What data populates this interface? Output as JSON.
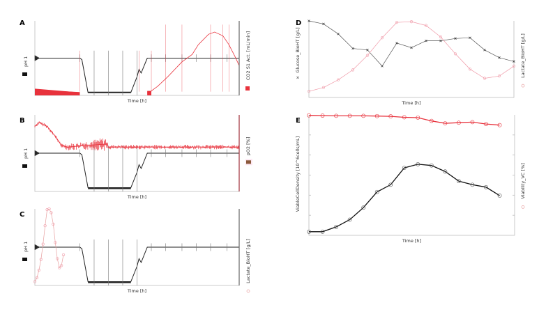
{
  "chart_data": [
    {
      "panel": "A",
      "type": "line",
      "xlabel": "Time [h]",
      "left_label": "pH 1",
      "right_label": "CO2 S1 Act. [mL/min]",
      "xlim": [
        0,
        100
      ],
      "ylim": [
        0,
        100
      ],
      "grid": false,
      "colors": {
        "pH": "#222222",
        "CO2": "#e8323c"
      },
      "series": [
        {
          "name": "pH 1",
          "points": [
            [
              0,
              50
            ],
            [
              22,
              50
            ],
            [
              23,
              48
            ],
            [
              26,
              4
            ],
            [
              47,
              4
            ],
            [
              50,
              25
            ],
            [
              51,
              35
            ],
            [
              52,
              30
            ],
            [
              55,
              50
            ],
            [
              100,
              50
            ]
          ],
          "spikes": [
            22,
            29,
            36,
            43,
            50,
            57,
            64,
            72,
            79,
            86,
            94
          ]
        },
        {
          "name": "CO2 S1 Act. [mL/min]",
          "points": [
            [
              0,
              7
            ],
            [
              22,
              4
            ],
            [
              null,
              null
            ],
            [
              55,
              3
            ],
            [
              57,
              6
            ],
            [
              60,
              12
            ],
            [
              65,
              25
            ],
            [
              72,
              45
            ],
            [
              77,
              55
            ],
            [
              80,
              68
            ],
            [
              85,
              82
            ],
            [
              88,
              85
            ],
            [
              92,
              80
            ],
            [
              95,
              68
            ],
            [
              98,
              52
            ],
            [
              100,
              40
            ]
          ],
          "spikes": [
            22,
            51,
            57,
            64,
            72,
            86,
            92,
            95
          ]
        }
      ]
    },
    {
      "panel": "B",
      "type": "line",
      "xlabel": "Time [h]",
      "left_label": "pH 1",
      "right_label": "pO2 [%]",
      "xlim": [
        0,
        100
      ],
      "ylim": [
        0,
        100
      ],
      "grid": false,
      "colors": {
        "pH": "#222222",
        "pO2": "#e8323c",
        "pO2_legend": "#8b5a3c"
      },
      "series": [
        {
          "name": "pH 1",
          "points": [
            [
              0,
              50
            ],
            [
              22,
              50
            ],
            [
              23,
              48
            ],
            [
              26,
              5
            ],
            [
              47,
              5
            ],
            [
              50,
              25
            ],
            [
              51,
              35
            ],
            [
              52,
              30
            ],
            [
              55,
              50
            ],
            [
              100,
              50
            ]
          ],
          "spikes": [
            22,
            29,
            36,
            43,
            50,
            57,
            64,
            72,
            79,
            86,
            94
          ]
        },
        {
          "name": "pO2 [%]",
          "points": [
            [
              0,
              85
            ],
            [
              2,
              90
            ],
            [
              6,
              85
            ],
            [
              10,
              72
            ],
            [
              13,
              60
            ],
            [
              16,
              58
            ],
            [
              25,
              60
            ],
            [
              35,
              62
            ],
            [
              36,
              58
            ],
            [
              100,
              58
            ]
          ],
          "noise_band": [
            [
              14,
              4
            ],
            [
              25,
              6
            ],
            [
              35,
              9
            ],
            [
              36,
              3
            ],
            [
              100,
              3
            ]
          ]
        }
      ]
    },
    {
      "panel": "C",
      "type": "line",
      "xlabel": "Time [h]",
      "left_label": "pH 1",
      "right_label": "Lactate_BioHT [g/L]",
      "xlim": [
        0,
        100
      ],
      "ylim": [
        0,
        100
      ],
      "grid": false,
      "colors": {
        "pH": "#222222",
        "Lactate": "#e8a0a0"
      },
      "series": [
        {
          "name": "pH 1",
          "points": [
            [
              0,
              50
            ],
            [
              22,
              50
            ],
            [
              23,
              48
            ],
            [
              26,
              5
            ],
            [
              47,
              5
            ],
            [
              50,
              25
            ],
            [
              51,
              35
            ],
            [
              52,
              30
            ],
            [
              55,
              50
            ],
            [
              100,
              50
            ]
          ],
          "spikes": [
            22,
            29,
            36,
            43,
            50,
            57,
            64,
            72,
            79,
            86,
            94
          ]
        },
        {
          "name": "Lactate_BioHT [g/L]",
          "x": [
            0,
            1,
            2,
            3,
            4,
            5,
            6,
            7,
            8,
            9,
            10,
            11,
            12,
            13,
            14
          ],
          "values": [
            5,
            10,
            20,
            34,
            54,
            78,
            99,
            100,
            95,
            80,
            56,
            35,
            23,
            26,
            40
          ]
        }
      ]
    },
    {
      "panel": "D",
      "type": "line",
      "xlabel": "Time [h]",
      "left_label": "Glucose_BioHT [g/L]",
      "right_label": "Lactate_BioHT [g/L]",
      "xlim": [
        0,
        14
      ],
      "ylim": [
        0,
        100
      ],
      "grid": false,
      "colors": {
        "Glucose": "#555555",
        "Lactate": "#f09aa8"
      },
      "series": [
        {
          "name": "Glucose_BioHT [g/L]",
          "marker": "x",
          "x": [
            0,
            1,
            2,
            3,
            4,
            5,
            6,
            7,
            8,
            9,
            10,
            11,
            12,
            13,
            14
          ],
          "values": [
            100,
            96,
            83,
            64,
            62,
            41,
            71,
            65,
            74,
            74,
            77,
            78,
            62,
            52,
            47
          ]
        },
        {
          "name": "Lactate_BioHT [g/L]",
          "marker": "o",
          "x": [
            0,
            1,
            2,
            3,
            4,
            5,
            6,
            7,
            8,
            9,
            10,
            11,
            12,
            13,
            14
          ],
          "values": [
            8,
            13,
            23,
            36,
            55,
            78,
            98,
            99,
            94,
            79,
            57,
            37,
            25,
            28,
            41
          ]
        }
      ]
    },
    {
      "panel": "E",
      "type": "line",
      "xlabel": "Time [h]",
      "left_label": "ViableCellDensity [10^6cells/mL]",
      "right_label": "Viability_VC [%]",
      "xlim": [
        0,
        15.1
      ],
      "ylim": [
        0,
        100
      ],
      "grid": false,
      "colors": {
        "VCD": "#111111",
        "Viability": "#e8323c"
      },
      "series": [
        {
          "name": "ViableCellDensity [10^6cells/mL]",
          "marker": "o",
          "x": [
            0,
            1,
            2,
            3,
            4,
            5,
            6,
            7,
            8,
            9,
            10,
            11,
            12,
            13,
            14
          ],
          "values": [
            3,
            3,
            7,
            13,
            23,
            36,
            42,
            56,
            59,
            58,
            53,
            45,
            42,
            40,
            33
          ]
        },
        {
          "name": "Viability_VC [%]",
          "marker": "o",
          "x": [
            0,
            1,
            2,
            3,
            4,
            5,
            6,
            7,
            8,
            9,
            10,
            11,
            12,
            13,
            14
          ],
          "values": [
            99.6,
            99.4,
            99.2,
            99.2,
            99.2,
            99,
            98.8,
            98,
            97.7,
            95,
            93,
            93.5,
            94,
            92.4,
            91.5
          ]
        }
      ]
    }
  ]
}
